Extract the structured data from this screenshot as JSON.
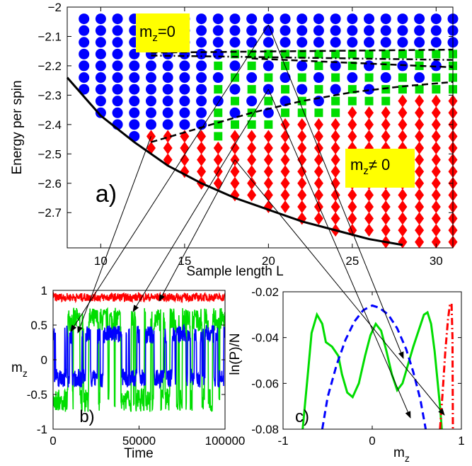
{
  "chart_data": [
    {
      "panel": "a)",
      "type": "scatter",
      "xlabel": "Sample length  L",
      "ylabel": "Energy per spin",
      "xlim": [
        8,
        31
      ],
      "ylim": [
        -2.82,
        -2.0
      ],
      "xticks": [
        10,
        15,
        20,
        25,
        30
      ],
      "yticks": [
        -2.0,
        -2.1,
        -2.2,
        -2.3,
        -2.4,
        -2.5,
        -2.6,
        -2.7
      ],
      "annotations": [
        {
          "text": "m",
          "sub": "z",
          "suffix": "=0",
          "ref": "blue"
        },
        {
          "text": "m",
          "sub": "z",
          "suffix": "≠ 0",
          "ref": "red"
        }
      ],
      "series": [
        {
          "color": "#0000ff",
          "marker": "circle",
          "note_value": "blue"
        },
        {
          "color": "#00dd00",
          "marker": "square",
          "note_value": "green"
        },
        {
          "color": "#ff0000",
          "marker": "diamond",
          "note_value": "red"
        }
      ],
      "ground_state_curve": {
        "x": [
          8,
          10,
          12,
          14,
          16,
          18,
          20,
          22,
          24,
          26,
          28
        ],
        "y": [
          -2.24,
          -2.37,
          -2.46,
          -2.54,
          -2.6,
          -2.65,
          -2.69,
          -2.73,
          -2.76,
          -2.79,
          -2.81
        ]
      },
      "dashed_curves": [
        {
          "x": [
            13,
            31
          ],
          "y": [
            -2.155,
            -2.145
          ]
        },
        {
          "x": [
            13,
            31
          ],
          "y": [
            -2.165,
            -2.18
          ]
        },
        {
          "x": [
            19,
            31
          ],
          "y": [
            -2.175,
            -2.205
          ]
        },
        {
          "x": [
            13,
            16,
            19,
            22,
            25,
            28,
            31
          ],
          "y": [
            -2.46,
            -2.41,
            -2.36,
            -2.32,
            -2.29,
            -2.27,
            -2.255
          ]
        }
      ],
      "panel_label": "a)"
    },
    {
      "panel": "b)",
      "type": "line",
      "xlabel": "Time",
      "ylabel": "m",
      "ylabel_sub": "z",
      "xlim": [
        0,
        100000
      ],
      "ylim": [
        -1,
        1
      ],
      "xticks": [
        0,
        50000,
        100000
      ],
      "xtick_labels": [
        "0",
        "50000",
        "100000"
      ],
      "yticks": [
        -1,
        -0.5,
        0,
        0.5,
        1
      ],
      "ytick_labels": [
        "-1",
        "-0.5",
        "0",
        "0.5",
        "1"
      ],
      "series": [
        {
          "color": "#ff0000",
          "center": 0.9,
          "amplitude": 0.06
        },
        {
          "color": "#00dd00",
          "center": 0.0,
          "amplitude": 0.75
        },
        {
          "color": "#0000ff",
          "center": 0.05,
          "amplitude": 0.45
        }
      ],
      "panel_label": "b)"
    },
    {
      "panel": "c)",
      "type": "line",
      "xlabel": "m",
      "xlabel_sub": "z",
      "ylabel": "ln(P)/N",
      "xlim": [
        -1,
        1
      ],
      "ylim": [
        -0.08,
        -0.02
      ],
      "xticks": [
        -1,
        0,
        1
      ],
      "xtick_labels": [
        "-1",
        "0",
        "1"
      ],
      "yticks": [
        -0.08,
        -0.06,
        -0.04,
        -0.02
      ],
      "ytick_labels": [
        "-0.08",
        "-0.06",
        "-0.04",
        "-0.02"
      ],
      "series": [
        {
          "color": "#00dd00",
          "style": "solid",
          "x": [
            -0.78,
            -0.72,
            -0.68,
            -0.62,
            -0.56,
            -0.52,
            -0.45,
            -0.38,
            -0.34,
            -0.28,
            -0.22,
            -0.15,
            -0.08,
            -0.02,
            0.04,
            0.1,
            0.16,
            0.22,
            0.28,
            0.34,
            0.4,
            0.46,
            0.52,
            0.58,
            0.62,
            0.66,
            0.7,
            0.73,
            0.76,
            0.78
          ],
          "y": [
            -0.08,
            -0.055,
            -0.038,
            -0.03,
            -0.034,
            -0.042,
            -0.044,
            -0.048,
            -0.056,
            -0.064,
            -0.066,
            -0.06,
            -0.048,
            -0.039,
            -0.034,
            -0.037,
            -0.046,
            -0.056,
            -0.063,
            -0.06,
            -0.052,
            -0.044,
            -0.037,
            -0.03,
            -0.029,
            -0.034,
            -0.046,
            -0.058,
            -0.07,
            -0.08
          ]
        },
        {
          "color": "#0000ff",
          "style": "dashed",
          "x": [
            -0.56,
            -0.5,
            -0.4,
            -0.3,
            -0.2,
            -0.1,
            0.0,
            0.08,
            0.18,
            0.28,
            0.38,
            0.46,
            0.54,
            0.6
          ],
          "y": [
            -0.08,
            -0.066,
            -0.052,
            -0.041,
            -0.033,
            -0.028,
            -0.026,
            -0.027,
            -0.03,
            -0.036,
            -0.045,
            -0.055,
            -0.067,
            -0.08
          ]
        },
        {
          "color": "#ff0000",
          "style": "dashdot",
          "x": [
            0.76,
            0.79,
            0.82,
            0.85,
            0.87,
            0.89,
            0.9,
            0.905
          ],
          "y": [
            -0.08,
            -0.064,
            -0.046,
            -0.032,
            -0.026,
            -0.025,
            -0.04,
            -0.08
          ]
        }
      ],
      "panel_label": "c)"
    }
  ]
}
